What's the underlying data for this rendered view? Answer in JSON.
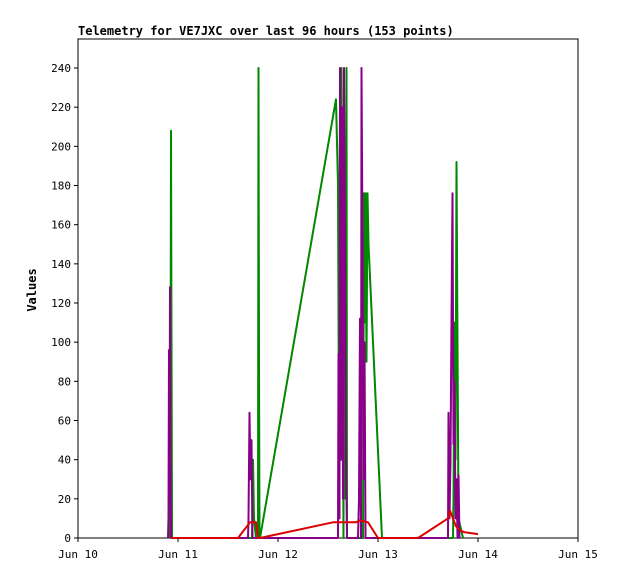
{
  "chart_data": {
    "type": "line",
    "title": "Telemetry for VE7JXC over last 96 hours (153 points)",
    "xlabel": "",
    "ylabel": "Values",
    "xlim": [
      0,
      5
    ],
    "ylim": [
      0,
      255
    ],
    "x_ticks": [
      {
        "value": 0,
        "label": "Jun 10"
      },
      {
        "value": 1,
        "label": "Jun 11"
      },
      {
        "value": 2,
        "label": "Jun 12"
      },
      {
        "value": 3,
        "label": "Jun 13"
      },
      {
        "value": 4,
        "label": "Jun 14"
      },
      {
        "value": 5,
        "label": "Jun 15"
      }
    ],
    "y_ticks": [
      0,
      20,
      40,
      60,
      80,
      100,
      120,
      140,
      160,
      180,
      200,
      220,
      240
    ],
    "grid": false,
    "legend": "none",
    "series": [
      {
        "color": "#008800",
        "points": [
          [
            0.92,
            0
          ],
          [
            0.925,
            50
          ],
          [
            0.93,
            208
          ],
          [
            0.935,
            100
          ],
          [
            0.94,
            0
          ],
          [
            1.74,
            0
          ],
          [
            1.75,
            40
          ],
          [
            1.76,
            10
          ],
          [
            1.78,
            0
          ],
          [
            1.8,
            0
          ],
          [
            1.805,
            240
          ],
          [
            1.81,
            90
          ],
          [
            1.815,
            0
          ],
          [
            1.82,
            0
          ],
          [
            2.58,
            224
          ],
          [
            2.6,
            180
          ],
          [
            2.61,
            50
          ],
          [
            2.62,
            224
          ],
          [
            2.63,
            90
          ],
          [
            2.635,
            240
          ],
          [
            2.645,
            130
          ],
          [
            2.655,
            0
          ],
          [
            2.66,
            224
          ],
          [
            2.675,
            20
          ],
          [
            2.685,
            240
          ],
          [
            2.69,
            0
          ],
          [
            2.85,
            0
          ],
          [
            2.86,
            176
          ],
          [
            2.865,
            110
          ],
          [
            2.875,
            176
          ],
          [
            2.885,
            90
          ],
          [
            2.895,
            176
          ],
          [
            2.905,
            150
          ],
          [
            3.04,
            0
          ],
          [
            3.2,
            0
          ],
          [
            3.75,
            0
          ],
          [
            3.755,
            20
          ],
          [
            3.765,
            110
          ],
          [
            3.775,
            40
          ],
          [
            3.785,
            192
          ],
          [
            3.795,
            100
          ],
          [
            3.805,
            10
          ],
          [
            3.85,
            0
          ]
        ]
      },
      {
        "color": "#880088",
        "points": [
          [
            0.9,
            0
          ],
          [
            0.905,
            10
          ],
          [
            0.91,
            96
          ],
          [
            0.915,
            20
          ],
          [
            0.92,
            128
          ],
          [
            0.925,
            40
          ],
          [
            0.93,
            0
          ],
          [
            1.05,
            0
          ],
          [
            1.7,
            0
          ],
          [
            1.705,
            10
          ],
          [
            1.715,
            64
          ],
          [
            1.725,
            30
          ],
          [
            1.735,
            50
          ],
          [
            1.745,
            0
          ],
          [
            2.6,
            0
          ],
          [
            2.605,
            94
          ],
          [
            2.615,
            10
          ],
          [
            2.62,
            240
          ],
          [
            2.63,
            40
          ],
          [
            2.64,
            220
          ],
          [
            2.65,
            20
          ],
          [
            2.66,
            240
          ],
          [
            2.67,
            145
          ],
          [
            2.68,
            40
          ],
          [
            2.69,
            0
          ],
          [
            2.75,
            0
          ],
          [
            2.8,
            0
          ],
          [
            2.81,
            20
          ],
          [
            2.82,
            112
          ],
          [
            2.83,
            0
          ],
          [
            2.835,
            240
          ],
          [
            2.845,
            150
          ],
          [
            2.855,
            30
          ],
          [
            2.865,
            100
          ],
          [
            2.875,
            0
          ],
          [
            3.0,
            0
          ],
          [
            3.5,
            0
          ],
          [
            3.7,
            0
          ],
          [
            3.705,
            64
          ],
          [
            3.715,
            10
          ],
          [
            3.725,
            40
          ],
          [
            3.735,
            112
          ],
          [
            3.745,
            176
          ],
          [
            3.755,
            48
          ],
          [
            3.765,
            80
          ],
          [
            3.775,
            10
          ],
          [
            3.785,
            30
          ],
          [
            3.795,
            0
          ],
          [
            3.805,
            32
          ],
          [
            3.815,
            0
          ],
          [
            3.82,
            0
          ]
        ]
      },
      {
        "color": "#dd0000",
        "points": [
          [
            0.93,
            0
          ],
          [
            1.6,
            0
          ],
          [
            1.72,
            8
          ],
          [
            1.78,
            8
          ],
          [
            1.8,
            0
          ],
          [
            1.82,
            0
          ],
          [
            2.55,
            8
          ],
          [
            2.7,
            8
          ],
          [
            2.78,
            8
          ],
          [
            2.82,
            9
          ],
          [
            2.9,
            8
          ],
          [
            3.0,
            0
          ],
          [
            3.4,
            0
          ],
          [
            3.7,
            10
          ],
          [
            3.72,
            14
          ],
          [
            3.75,
            10
          ],
          [
            3.78,
            6
          ],
          [
            3.82,
            4
          ],
          [
            3.86,
            3
          ],
          [
            4.0,
            2
          ]
        ]
      }
    ]
  }
}
